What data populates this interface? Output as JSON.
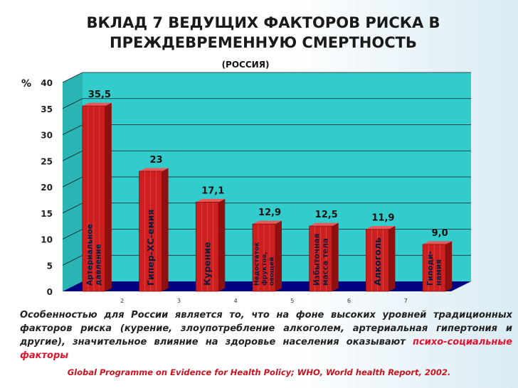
{
  "title_line1": "ВКЛАД 7 ВЕДУЩИХ ФАКТОРОВ РИСКА В",
  "title_line2": "ПРЕЖДЕВРЕМЕННУЮ СМЕРТНОСТЬ",
  "subtitle": "(РОССИЯ)",
  "caption": {
    "text": "Особенностью для России является то, что на фоне высоких уровней традиционных факторов риска (курение, злоупотребление алкоголем, артериальная гипертония и другие), значительное влияние на здоровье населения оказывают ",
    "highlight": "психо-социальные факторы"
  },
  "source": "Global Programme on Evidence for Health Policy; WHO, World health Report, 2002.",
  "colors": {
    "wall": "#33cccc",
    "floor": "#000080",
    "bar_front": "#cc1f1f",
    "bar_side": "#8e1010",
    "bar_top": "#e85a5a",
    "highlight": "#e0142e"
  },
  "chart_data": {
    "type": "bar",
    "ylabel": "%",
    "ylim": [
      0,
      40
    ],
    "yticks": [
      "0",
      "5",
      "10",
      "15",
      "20",
      "25",
      "30",
      "35",
      "40"
    ],
    "xticks": [
      "2",
      "3",
      "4",
      "5",
      "6",
      "7"
    ],
    "grid": true,
    "values": [
      35.5,
      23,
      17.1,
      12.9,
      12.5,
      11.9,
      9.0
    ],
    "value_labels": [
      "35,5",
      "23",
      "17,1",
      "12,9",
      "12,5",
      "11,9",
      "9,0"
    ],
    "bar_labels": [
      [
        "Артериальное",
        "давление"
      ],
      [
        "Гипер-ХС-емия"
      ],
      [
        "Курение"
      ],
      [
        "Недостаток",
        "фруктов,",
        "овощей"
      ],
      [
        "Избыточная",
        "масса тела"
      ],
      [
        "Алкоголь"
      ],
      [
        "Гиподи-",
        "намия"
      ]
    ]
  }
}
